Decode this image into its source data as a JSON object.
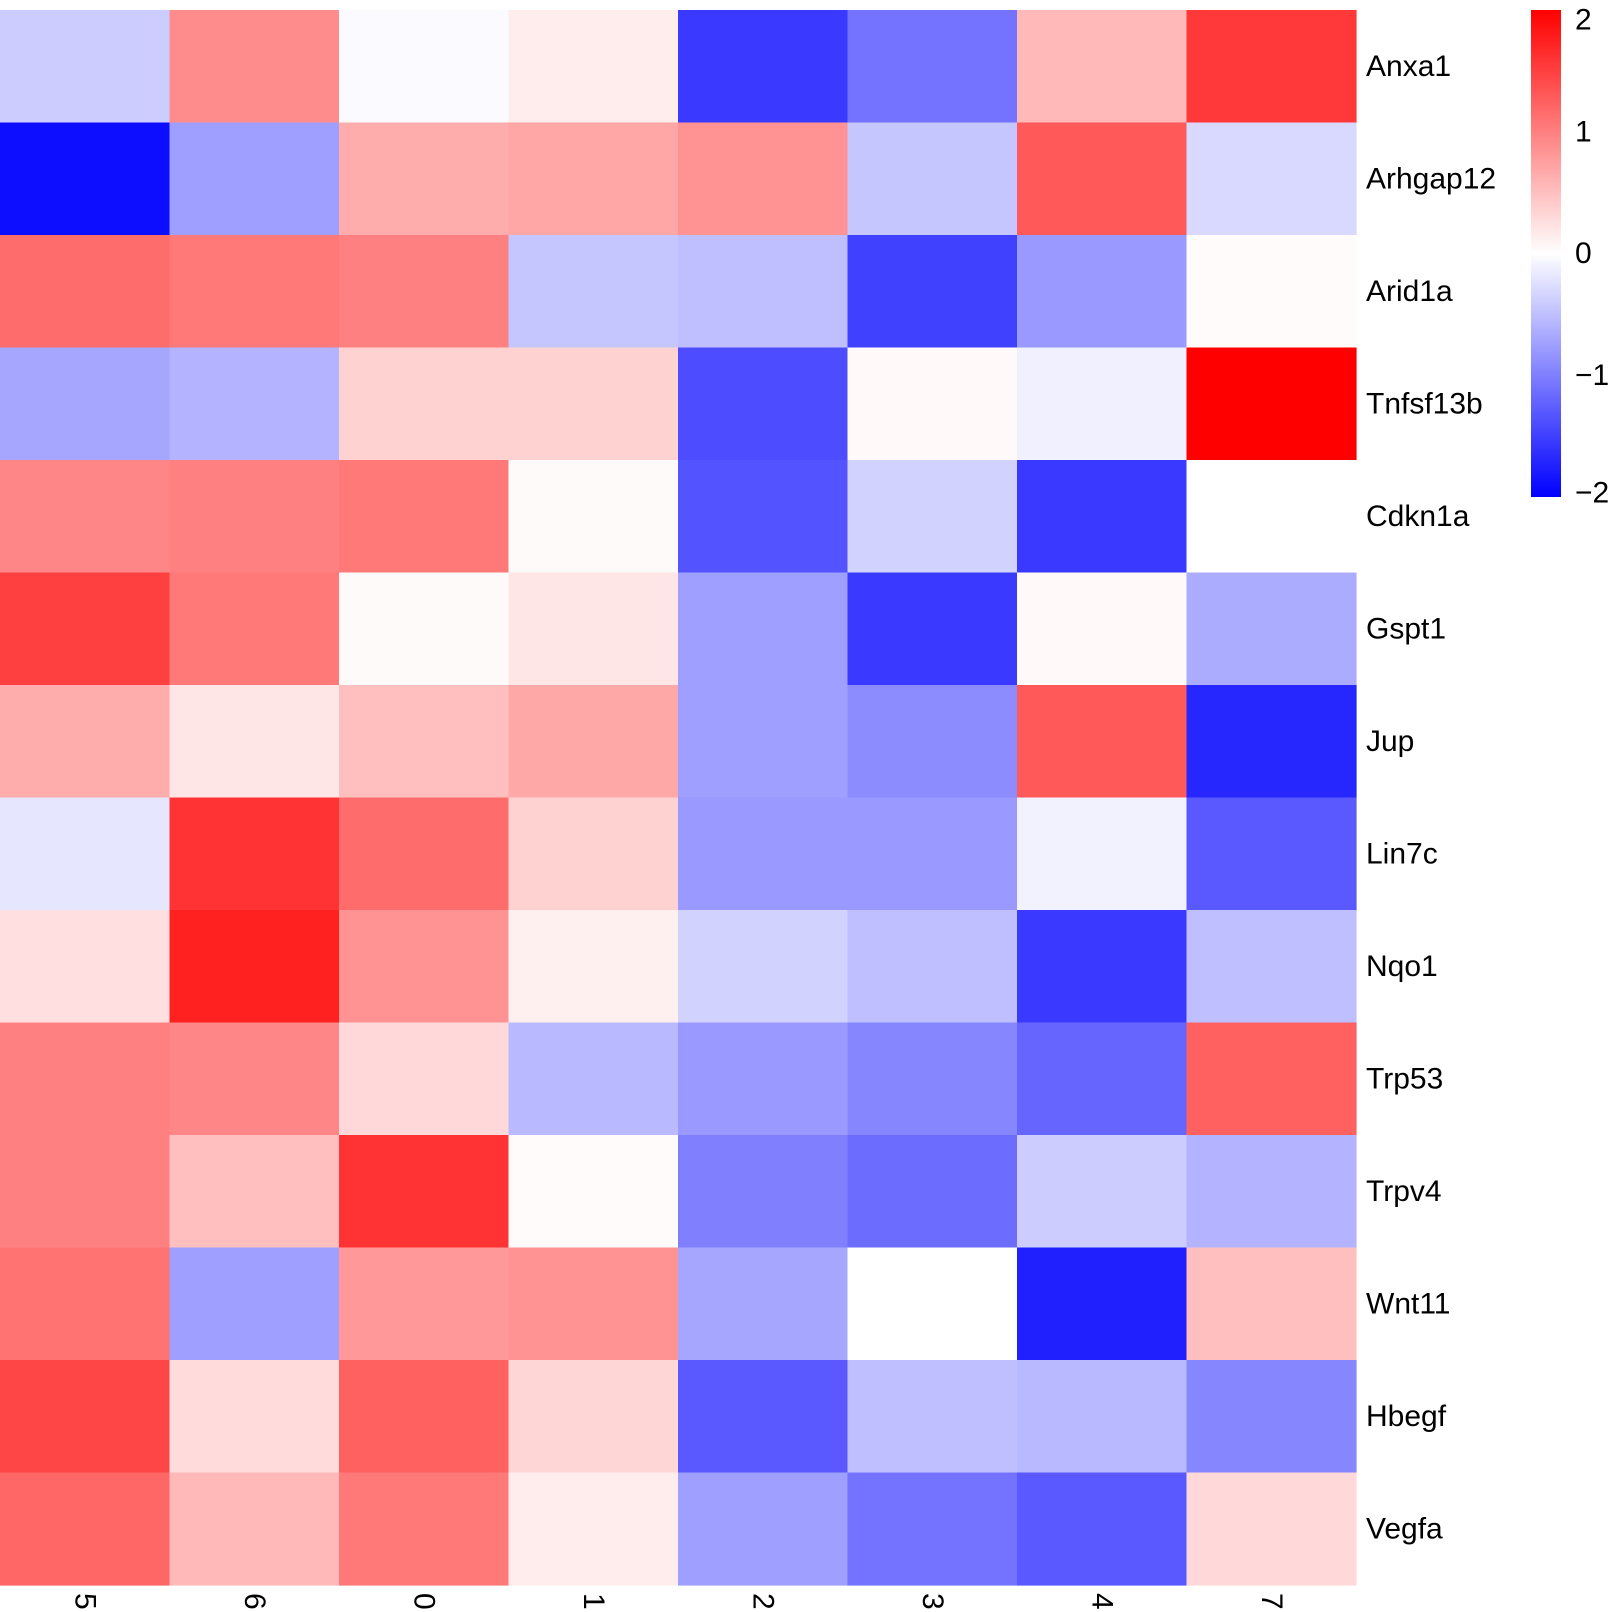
{
  "chart_data": {
    "type": "heatmap",
    "columns": [
      "5",
      "6",
      "0",
      "1",
      "2",
      "3",
      "4",
      "7"
    ],
    "rows": [
      "Anxa1",
      "Arhgap12",
      "Arid1a",
      "Tnfsf13b",
      "Cdkn1a",
      "Gspt1",
      "Jup",
      "Lin7c",
      "Nqo1",
      "Trp53",
      "Trpv4",
      "Wnt11",
      "Hbegf",
      "Vegfa"
    ],
    "values": [
      [
        -0.4,
        0.9,
        -0.03,
        0.15,
        -1.55,
        -1.1,
        0.55,
        1.55
      ],
      [
        -1.9,
        -0.75,
        0.65,
        0.7,
        0.85,
        -0.45,
        1.3,
        -0.3
      ],
      [
        1.15,
        1.05,
        1.0,
        -0.45,
        -0.5,
        -1.5,
        -0.8,
        0.03
      ],
      [
        -0.7,
        -0.6,
        0.35,
        0.35,
        -1.4,
        0.05,
        -0.12,
        2.0
      ],
      [
        0.95,
        1.0,
        1.05,
        0.04,
        -1.35,
        -0.35,
        -1.55,
        0.0
      ],
      [
        1.5,
        1.05,
        0.04,
        0.2,
        -0.75,
        -1.55,
        0.05,
        -0.65
      ],
      [
        0.65,
        0.2,
        0.5,
        0.68,
        -0.75,
        -0.9,
        1.3,
        -1.7
      ],
      [
        -0.2,
        1.6,
        1.15,
        0.35,
        -0.8,
        -0.8,
        -0.1,
        -1.3
      ],
      [
        0.25,
        1.75,
        0.85,
        0.12,
        -0.35,
        -0.5,
        -1.55,
        -0.5
      ],
      [
        1.0,
        0.95,
        0.3,
        -0.55,
        -0.8,
        -0.95,
        -1.2,
        1.25
      ],
      [
        1.0,
        0.5,
        1.6,
        0.03,
        -1.0,
        -1.15,
        -0.4,
        -0.6
      ],
      [
        1.1,
        -0.75,
        0.8,
        0.85,
        -0.7,
        0.0,
        -1.75,
        0.5
      ],
      [
        1.45,
        0.28,
        1.25,
        0.32,
        -1.3,
        -0.5,
        -0.55,
        -0.95
      ],
      [
        1.2,
        0.55,
        1.05,
        0.15,
        -0.75,
        -1.1,
        -1.3,
        0.3
      ]
    ],
    "colorbar": {
      "range": [
        -2,
        2
      ],
      "ticks": [
        "2",
        "1",
        "0",
        "−1",
        "−2"
      ],
      "tick_values": [
        2,
        1,
        0,
        -1,
        -2
      ],
      "low_color": "#0000FF",
      "mid_color": "#FFFFFF",
      "high_color": "#FF0000"
    },
    "title": "",
    "xlabel": "",
    "ylabel": ""
  }
}
